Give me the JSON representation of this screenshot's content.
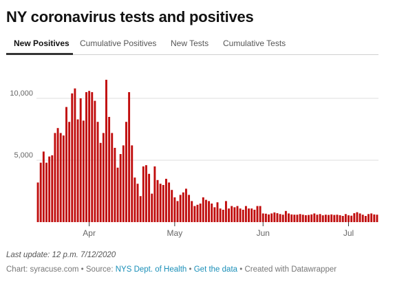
{
  "header": {
    "title": "NY coronavirus tests and positives"
  },
  "tabs": [
    {
      "label": "New Positives",
      "active": true
    },
    {
      "label": "Cumulative Positives",
      "active": false
    },
    {
      "label": "New Tests",
      "active": false
    },
    {
      "label": "Cumulative Tests",
      "active": false
    }
  ],
  "footer": {
    "last_update": "Last update: 12 p.m. 7/12/2020",
    "chart_by": "Chart: syracuse.com",
    "source_prefix": "Source:",
    "source_link": "NYS Dept. of Health",
    "get_data": "Get the data",
    "created_with": "Created with Datawrapper",
    "bullet": "•"
  },
  "colors": {
    "bar": "#c00d0d",
    "grid": "#dddddd",
    "tick_text": "#666666",
    "link": "#1a8fb8"
  },
  "chart_data": {
    "type": "bar",
    "x_start": "2020-03-14",
    "x_end": "2020-07-11",
    "ylim": [
      0,
      12000
    ],
    "yticks": [
      {
        "value": 5000,
        "label": "5,000"
      },
      {
        "value": 10000,
        "label": "10,000"
      }
    ],
    "xticks": [
      {
        "date": "2020-04-01",
        "label": "Apr"
      },
      {
        "date": "2020-05-01",
        "label": "May"
      },
      {
        "date": "2020-06-01",
        "label": "Jun"
      },
      {
        "date": "2020-07-01",
        "label": "Jul"
      }
    ],
    "grid": true,
    "values": [
      3200,
      4800,
      5700,
      4800,
      5300,
      5400,
      7200,
      7600,
      7200,
      7000,
      9300,
      8100,
      10400,
      10800,
      8300,
      10000,
      8200,
      10500,
      10600,
      10500,
      9800,
      8100,
      6400,
      7200,
      11500,
      8500,
      7200,
      6000,
      4400,
      5500,
      6200,
      8100,
      10500,
      6200,
      3600,
      3100,
      2100,
      4500,
      4600,
      3900,
      2300,
      4500,
      3400,
      3100,
      3000,
      3500,
      3200,
      2600,
      2000,
      1700,
      2200,
      2400,
      2700,
      2200,
      1700,
      1300,
      1400,
      1500,
      2000,
      1800,
      1700,
      1500,
      1200,
      1600,
      1100,
      1000,
      1700,
      1100,
      1300,
      1200,
      1300,
      1100,
      1000,
      1300,
      1100,
      1100,
      1000,
      1300,
      1300,
      700,
      680,
      620,
      700,
      780,
      720,
      650,
      600,
      900,
      700,
      620,
      600,
      600,
      650,
      600,
      560,
      580,
      620,
      700,
      600,
      650,
      550,
      600,
      580,
      620,
      580,
      600,
      560,
      500,
      650,
      550,
      520,
      720,
      800,
      700,
      600,
      500,
      650,
      700,
      620,
      600
    ]
  }
}
